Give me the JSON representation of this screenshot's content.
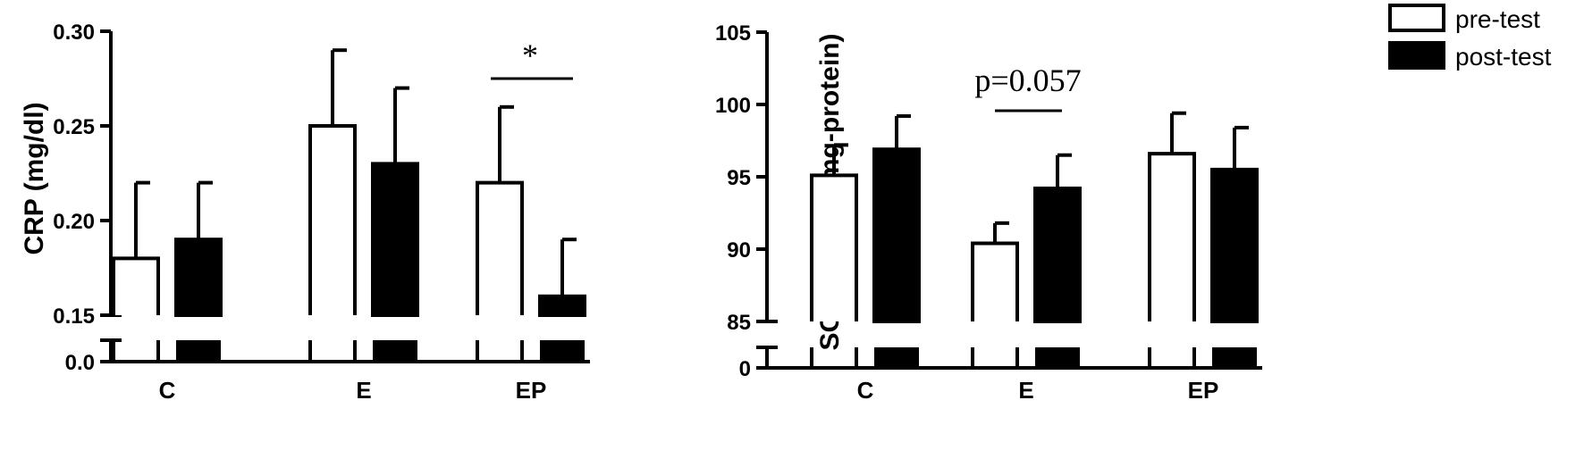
{
  "legend": {
    "items": [
      {
        "label": "pre-test",
        "fill": "#ffffff"
      },
      {
        "label": "post-test",
        "fill": "#000000"
      }
    ],
    "placement": "top-right"
  },
  "chart_data": [
    {
      "type": "bar",
      "ylabel": "CRP (mg/dl)",
      "categories": [
        "C",
        "E",
        "EP"
      ],
      "ylim": [
        0.15,
        0.3
      ],
      "yticks": [
        "0.30",
        "0.25",
        "0.20",
        "0.15"
      ],
      "broken_axis_tick": "0.0",
      "grid": false,
      "series": [
        {
          "name": "pre-test",
          "values": [
            0.18,
            0.25,
            0.22
          ],
          "error": [
            0.04,
            0.04,
            0.04
          ]
        },
        {
          "name": "post-test",
          "values": [
            0.19,
            0.23,
            0.16
          ],
          "error": [
            0.03,
            0.04,
            0.03
          ]
        }
      ],
      "annotations": [
        {
          "text": "*",
          "category": "EP"
        }
      ]
    },
    {
      "type": "bar",
      "ylabel": "SOD-RBC (U/mg-protein)",
      "categories": [
        "C",
        "E",
        "EP"
      ],
      "ylim": [
        85,
        105
      ],
      "yticks": [
        "105",
        "100",
        "95",
        "90",
        "85"
      ],
      "broken_axis_tick": "0",
      "grid": false,
      "series": [
        {
          "name": "pre-test",
          "values": [
            95.1,
            90.4,
            96.6
          ],
          "error": [
            2.1,
            1.4,
            2.8
          ]
        },
        {
          "name": "post-test",
          "values": [
            96.9,
            94.2,
            95.5
          ],
          "error": [
            2.3,
            2.3,
            2.9
          ]
        }
      ],
      "annotations": [
        {
          "text": "p=0.057",
          "category": "E"
        }
      ]
    }
  ]
}
